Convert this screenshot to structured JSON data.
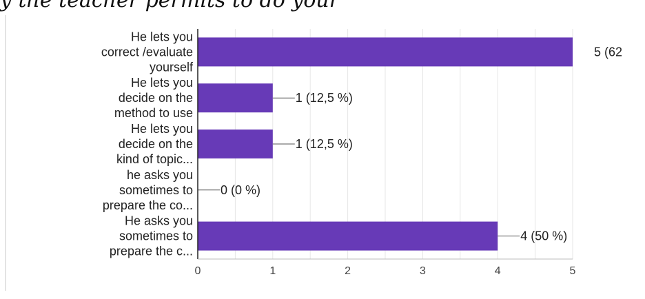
{
  "page": {
    "clipped_title": "y the teacher permits to do your"
  },
  "chart_data": {
    "type": "bar",
    "orientation": "horizontal",
    "categories": [
      [
        "He lets you",
        "correct /evaluate",
        "yourself"
      ],
      [
        "He lets you",
        "decide on the",
        "method to use"
      ],
      [
        "He lets you",
        "decide on the",
        "kind of topic..."
      ],
      [
        "he asks you",
        "sometimes to",
        "prepare the co..."
      ],
      [
        "He asks you",
        "sometimes to",
        "prepare the c..."
      ]
    ],
    "values": [
      5,
      1,
      1,
      0,
      4
    ],
    "data_labels": [
      "5 (62",
      "1 (12,5 %)",
      "1 (12,5 %)",
      "0 (0 %)",
      "4 (50 %)"
    ],
    "x_ticks": [
      "0",
      "1",
      "2",
      "3",
      "4",
      "5"
    ],
    "xlim": [
      0,
      5
    ],
    "grid": true,
    "colors": {
      "bar": "#673ab7",
      "grid": "#e6e6e6",
      "axis": "#222222",
      "text": "#222222",
      "tick_text": "#444444"
    }
  }
}
